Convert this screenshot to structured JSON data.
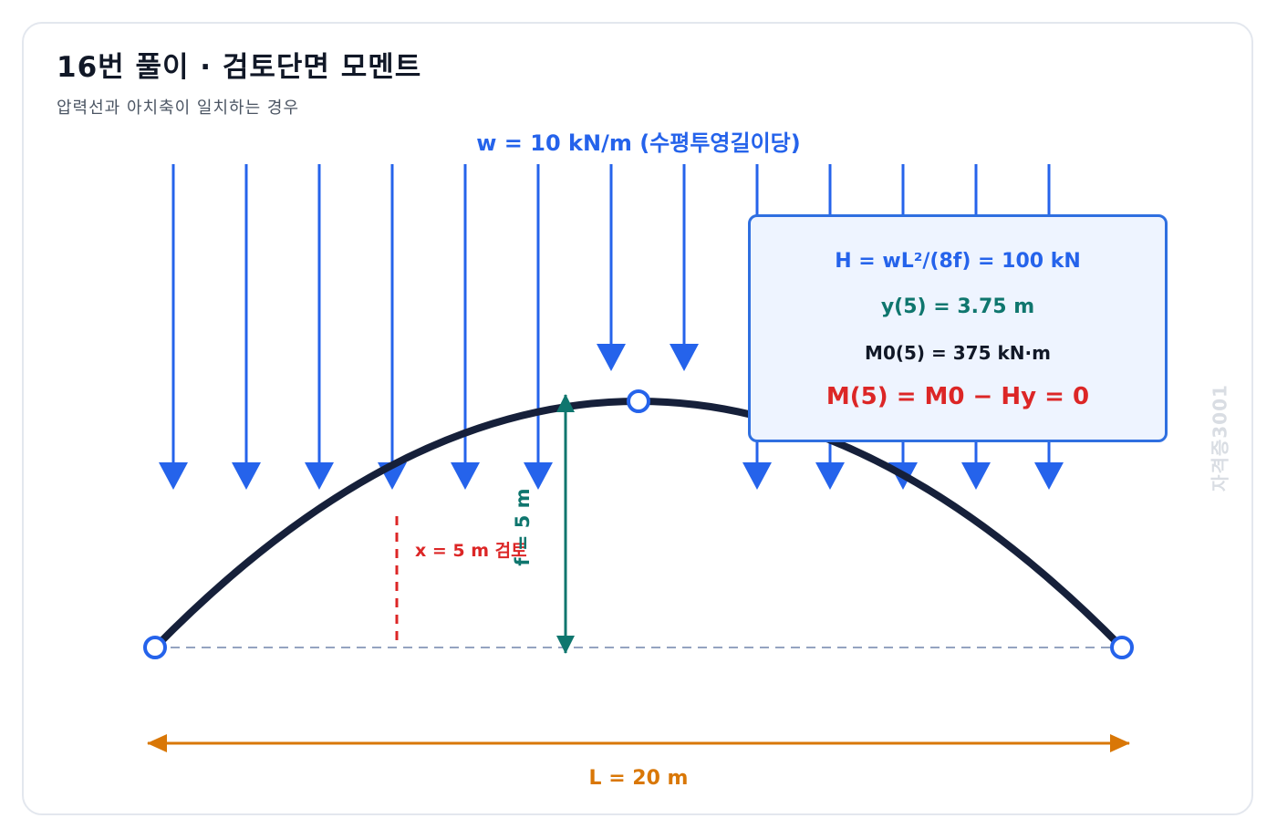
{
  "title": "16번 풀이 · 검토단면 모멘트",
  "subtitle": "압력선과 아치축이 일치하는 경우",
  "watermark": "자격증3001",
  "load_label": "w = 10 kN/m (수평투영길이당)",
  "rise_label": "f = 5 m",
  "section_label": "x = 5 m 검토",
  "span_label": "L = 20 m",
  "info": {
    "h": "H = wL²/(8f) = 100 kN",
    "y": "y(5) = 3.75 m",
    "m0": "M0(5) = 375 kN·m",
    "m": "M(5) = M0 − Hy = 0"
  },
  "colors": {
    "arch": "#16203a",
    "load": "#2563eb",
    "rise": "#0f766e",
    "section": "#dc2626",
    "span": "#d97706",
    "baseline": "#94a3c0"
  }
}
